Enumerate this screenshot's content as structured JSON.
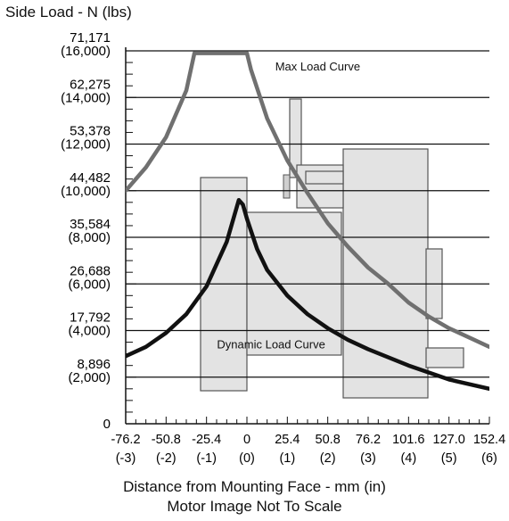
{
  "chart_data": {
    "type": "line",
    "title": "Side Load - N (lbs)",
    "xlabel": "Distance from Mounting Face - mm (in)",
    "subtitle": "Motor Image Not To Scale",
    "x_ticks": [
      {
        "v": -76.2,
        "mm": "-76.2",
        "in": "(-3)"
      },
      {
        "v": -50.8,
        "mm": "-50.8",
        "in": "(-2)"
      },
      {
        "v": -25.4,
        "mm": "-25.4",
        "in": "(-1)"
      },
      {
        "v": 0,
        "mm": "0",
        "in": "(0)"
      },
      {
        "v": 25.4,
        "mm": "25.4",
        "in": "(1)"
      },
      {
        "v": 50.8,
        "mm": "50.8",
        "in": "(2)"
      },
      {
        "v": 76.2,
        "mm": "76.2",
        "in": "(3)"
      },
      {
        "v": 101.6,
        "mm": "101.6",
        "in": "(4)"
      },
      {
        "v": 127.0,
        "mm": "127.0",
        "in": "(5)"
      },
      {
        "v": 152.4,
        "mm": "152.4",
        "in": "(6)"
      }
    ],
    "y_ticks": [
      {
        "v": 0,
        "n": "0",
        "lbs": ""
      },
      {
        "v": 2000,
        "n": "8,896",
        "lbs": "(2,000)"
      },
      {
        "v": 4000,
        "n": "17,792",
        "lbs": "(4,000)"
      },
      {
        "v": 6000,
        "n": "26,688",
        "lbs": "(6,000)"
      },
      {
        "v": 8000,
        "n": "35,584",
        "lbs": "(8,000)"
      },
      {
        "v": 10000,
        "n": "44,482",
        "lbs": "(10,000)"
      },
      {
        "v": 12000,
        "n": "53,378",
        "lbs": "(12,000)"
      },
      {
        "v": 14000,
        "n": "62,275",
        "lbs": "(14,000)"
      },
      {
        "v": 16000,
        "n": "71,171",
        "lbs": "(16,000)"
      }
    ],
    "xlim": [
      -76.2,
      152.4
    ],
    "ylim": [
      0,
      16000
    ],
    "grid": true,
    "series": [
      {
        "name": "Max Load Curve",
        "color": "#707070",
        "x": [
          -76.2,
          -63.5,
          -50.8,
          -38.1,
          -33.0,
          0,
          2.5,
          12.7,
          25.4,
          38.1,
          50.8,
          63.5,
          76.2,
          88.9,
          101.6,
          114.3,
          127.0,
          139.7,
          152.4
        ],
        "y": [
          10000,
          11000,
          12300,
          14300,
          15900,
          15900,
          15200,
          13100,
          11300,
          9900,
          8600,
          7600,
          6700,
          6000,
          5200,
          4600,
          4100,
          3700,
          3300
        ]
      },
      {
        "name": "Dynamic Load Curve",
        "color": "#111111",
        "x": [
          -76.2,
          -63.5,
          -50.8,
          -38.1,
          -25.4,
          -12.7,
          -5.1,
          -2.5,
          0,
          6.4,
          12.7,
          25.4,
          38.1,
          50.8,
          63.5,
          76.2,
          101.6,
          127.0,
          152.4
        ],
        "y": [
          2900,
          3300,
          3900,
          4700,
          5900,
          7800,
          9600,
          9400,
          8800,
          7500,
          6600,
          5500,
          4700,
          4100,
          3600,
          3200,
          2500,
          1900,
          1500
        ]
      }
    ]
  }
}
